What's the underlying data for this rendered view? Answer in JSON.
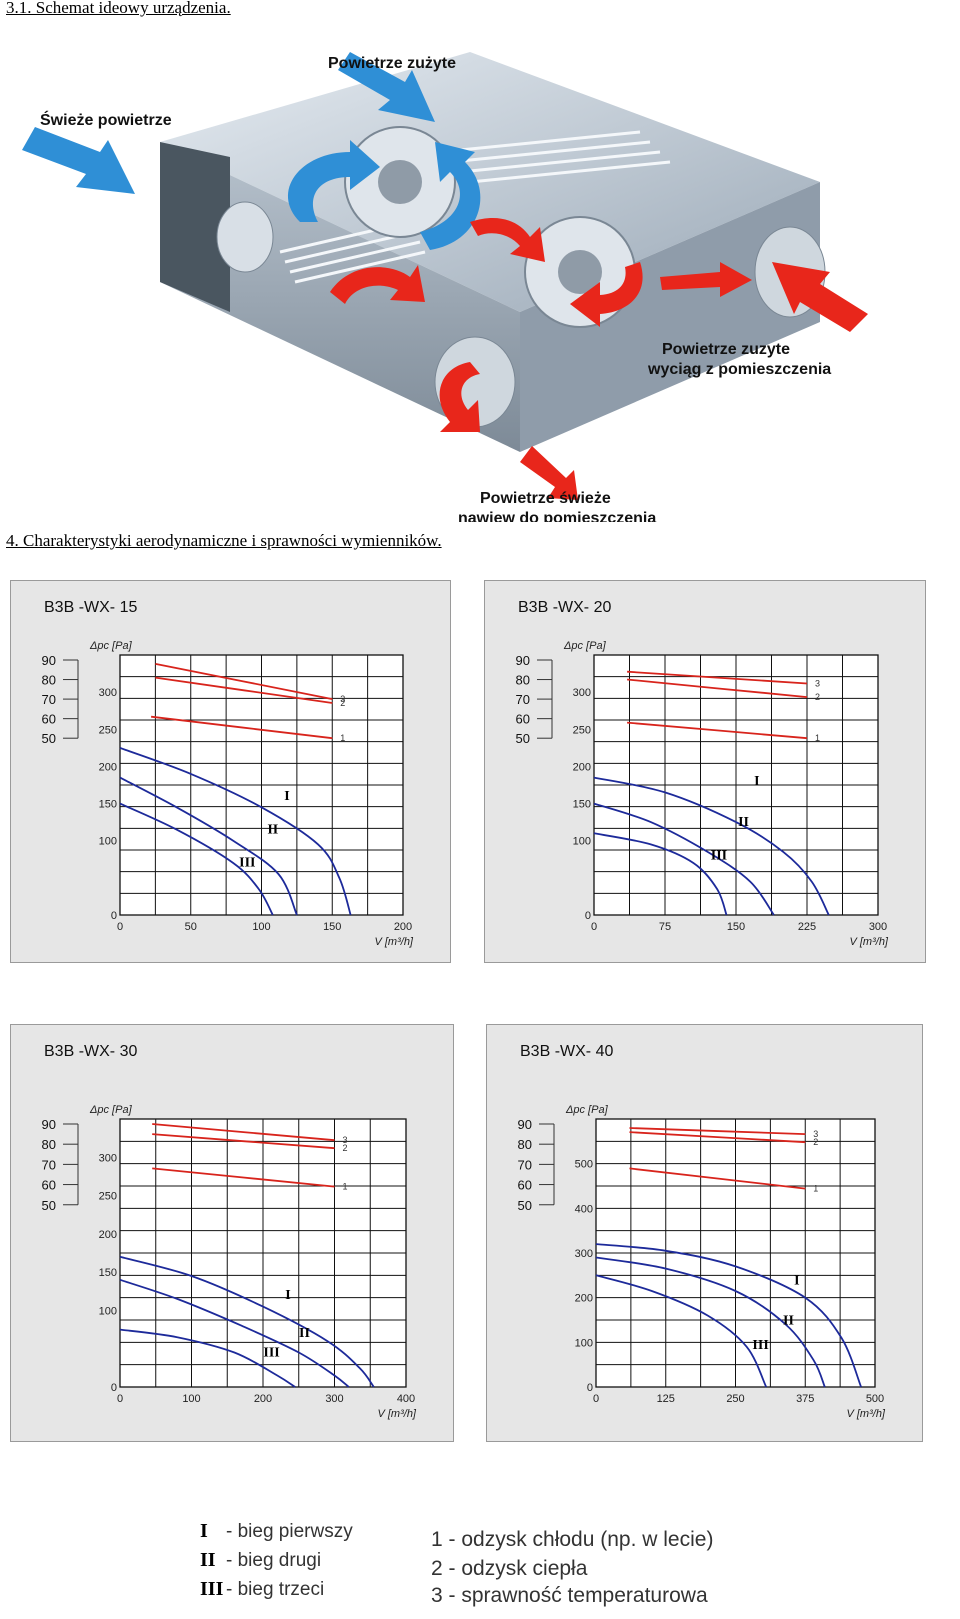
{
  "headings": {
    "section_3_1": "3.1. Schemat ideowy urządzenia.",
    "section_4": "4. Charakterystyki aerodynamiczne i sprawności wymienników."
  },
  "diagram": {
    "labels": {
      "exhaust_air": "Powietrze zużyte",
      "fresh_air": "Świeże powietrze",
      "exhaust_extract_line1": "Powietrze zuzyte",
      "exhaust_extract_line2": "wyciąg z pomieszczenia",
      "supply_line1": "Powietrze świeże",
      "supply_line2": "nawiew do pomieszczenia"
    },
    "colors": {
      "cold_arrow": "#2f8fd6",
      "warm_arrow": "#e8261b",
      "housing": "#c9d3dc"
    }
  },
  "chart_data": [
    {
      "type": "line",
      "title": "B3B -WX- 15",
      "ylabel": "Δpc [Pa]",
      "xlabel": "V [m³/h]",
      "xlim": [
        0,
        200
      ],
      "x_ticks": [
        0,
        50,
        100,
        150,
        200
      ],
      "ylim": [
        0,
        350
      ],
      "y_ticks": [
        0,
        100,
        150,
        200,
        250,
        300
      ],
      "eff_ticks": [
        90,
        80,
        70,
        60,
        50
      ],
      "eff_range": [
        50,
        90
      ],
      "grid": true,
      "pressure_curves": [
        {
          "name": "I",
          "x": [
            0,
            50,
            100,
            140,
            155,
            163
          ],
          "y": [
            225,
            190,
            145,
            95,
            50,
            0
          ]
        },
        {
          "name": "II",
          "x": [
            0,
            40,
            80,
            112,
            125
          ],
          "y": [
            185,
            145,
            100,
            55,
            0
          ]
        },
        {
          "name": "III",
          "x": [
            0,
            40,
            80,
            98,
            108
          ],
          "y": [
            150,
            115,
            70,
            35,
            0
          ]
        }
      ],
      "efficiency_curves": [
        {
          "name": "3",
          "x": [
            25,
            150
          ],
          "y": [
            88,
            70
          ]
        },
        {
          "name": "2",
          "x": [
            25,
            150
          ],
          "y": [
            81,
            68
          ]
        },
        {
          "name": "1",
          "x": [
            22,
            150
          ],
          "y": [
            61,
            50
          ]
        }
      ],
      "roman_labels": [
        {
          "text": "I",
          "x": 118,
          "y": 155
        },
        {
          "text": "II",
          "x": 108,
          "y": 110
        },
        {
          "text": "III",
          "x": 90,
          "y": 65
        }
      ]
    },
    {
      "type": "line",
      "title": "B3B -WX- 20",
      "ylabel": "Δpc [Pa]",
      "xlabel": "V [m³/h]",
      "xlim": [
        0,
        300
      ],
      "x_ticks": [
        0,
        75,
        150,
        225,
        300
      ],
      "ylim": [
        0,
        350
      ],
      "y_ticks": [
        0,
        100,
        150,
        200,
        250,
        300
      ],
      "eff_ticks": [
        90,
        80,
        70,
        60,
        50
      ],
      "eff_range": [
        50,
        90
      ],
      "grid": true,
      "pressure_curves": [
        {
          "name": "I",
          "x": [
            0,
            75,
            150,
            200,
            230,
            248
          ],
          "y": [
            185,
            165,
            125,
            85,
            45,
            0
          ]
        },
        {
          "name": "II",
          "x": [
            0,
            60,
            120,
            165,
            190
          ],
          "y": [
            150,
            125,
            85,
            45,
            0
          ]
        },
        {
          "name": "III",
          "x": [
            0,
            60,
            105,
            130,
            140
          ],
          "y": [
            110,
            95,
            70,
            35,
            0
          ]
        }
      ],
      "efficiency_curves": [
        {
          "name": "3",
          "x": [
            35,
            225
          ],
          "y": [
            84,
            78
          ]
        },
        {
          "name": "2",
          "x": [
            35,
            225
          ],
          "y": [
            80,
            71
          ]
        },
        {
          "name": "1",
          "x": [
            35,
            225
          ],
          "y": [
            58,
            50
          ]
        }
      ],
      "roman_labels": [
        {
          "text": "I",
          "x": 172,
          "y": 175
        },
        {
          "text": "II",
          "x": 158,
          "y": 120
        },
        {
          "text": "III",
          "x": 132,
          "y": 75
        }
      ]
    },
    {
      "type": "line",
      "title": "B3B -WX- 30",
      "ylabel": "Δpc [Pa]",
      "xlabel": "V [m³/h]",
      "xlim": [
        0,
        400
      ],
      "x_ticks": [
        0,
        100,
        200,
        300,
        400
      ],
      "ylim": [
        0,
        350
      ],
      "y_ticks": [
        0,
        100,
        150,
        200,
        250,
        300
      ],
      "eff_ticks": [
        90,
        80,
        70,
        60,
        50
      ],
      "eff_range": [
        50,
        90
      ],
      "grid": true,
      "pressure_curves": [
        {
          "name": "I",
          "x": [
            0,
            100,
            200,
            290,
            335,
            355
          ],
          "y": [
            170,
            145,
            105,
            60,
            25,
            0
          ]
        },
        {
          "name": "II",
          "x": [
            0,
            80,
            170,
            250,
            300,
            320
          ],
          "y": [
            140,
            115,
            80,
            45,
            15,
            0
          ]
        },
        {
          "name": "III",
          "x": [
            0,
            80,
            160,
            220,
            245
          ],
          "y": [
            75,
            65,
            45,
            15,
            0
          ]
        }
      ],
      "efficiency_curves": [
        {
          "name": "3",
          "x": [
            45,
            300
          ],
          "y": [
            90,
            82
          ]
        },
        {
          "name": "2",
          "x": [
            45,
            300
          ],
          "y": [
            85,
            78
          ]
        },
        {
          "name": "1",
          "x": [
            45,
            300
          ],
          "y": [
            68,
            59
          ]
        }
      ],
      "roman_labels": [
        {
          "text": "I",
          "x": 235,
          "y": 115
        },
        {
          "text": "II",
          "x": 258,
          "y": 65
        },
        {
          "text": "III",
          "x": 212,
          "y": 40
        }
      ]
    },
    {
      "type": "line",
      "title": "B3B -WX- 40",
      "ylabel": "Δpc [Pa]",
      "xlabel": "V [m³/h]",
      "xlim": [
        0,
        500
      ],
      "x_ticks": [
        0,
        125,
        250,
        375,
        500
      ],
      "ylim": [
        0,
        600
      ],
      "y_ticks": [
        0,
        100,
        200,
        300,
        400,
        500
      ],
      "eff_ticks": [
        90,
        80,
        70,
        60,
        50
      ],
      "eff_range": [
        50,
        90
      ],
      "grid": true,
      "pressure_curves": [
        {
          "name": "I",
          "x": [
            0,
            125,
            250,
            375,
            440,
            475
          ],
          "y": [
            320,
            305,
            270,
            200,
            110,
            0
          ]
        },
        {
          "name": "II",
          "x": [
            0,
            125,
            250,
            340,
            390,
            410
          ],
          "y": [
            290,
            265,
            215,
            140,
            60,
            0
          ]
        },
        {
          "name": "III",
          "x": [
            0,
            100,
            200,
            270,
            305
          ],
          "y": [
            250,
            215,
            160,
            90,
            0
          ]
        }
      ],
      "efficiency_curves": [
        {
          "name": "3",
          "x": [
            60,
            375
          ],
          "y": [
            88,
            85
          ]
        },
        {
          "name": "2",
          "x": [
            60,
            375
          ],
          "y": [
            86,
            81
          ]
        },
        {
          "name": "1",
          "x": [
            60,
            375
          ],
          "y": [
            68,
            58
          ]
        }
      ],
      "roman_labels": [
        {
          "text": "I",
          "x": 360,
          "y": 230
        },
        {
          "text": "II",
          "x": 345,
          "y": 140
        },
        {
          "text": "III",
          "x": 295,
          "y": 85
        }
      ]
    }
  ],
  "legend": {
    "speeds": [
      {
        "symbol": "I",
        "label": "- bieg pierwszy"
      },
      {
        "symbol": "II",
        "label": "- bieg drugi"
      },
      {
        "symbol": "III",
        "label": "- bieg trzeci"
      }
    ],
    "curves": [
      {
        "label": "1 - odzysk chłodu (np. w lecie)"
      },
      {
        "label": "2 - odzysk ciepła"
      },
      {
        "label": "3 - sprawność temperaturowa"
      }
    ]
  }
}
